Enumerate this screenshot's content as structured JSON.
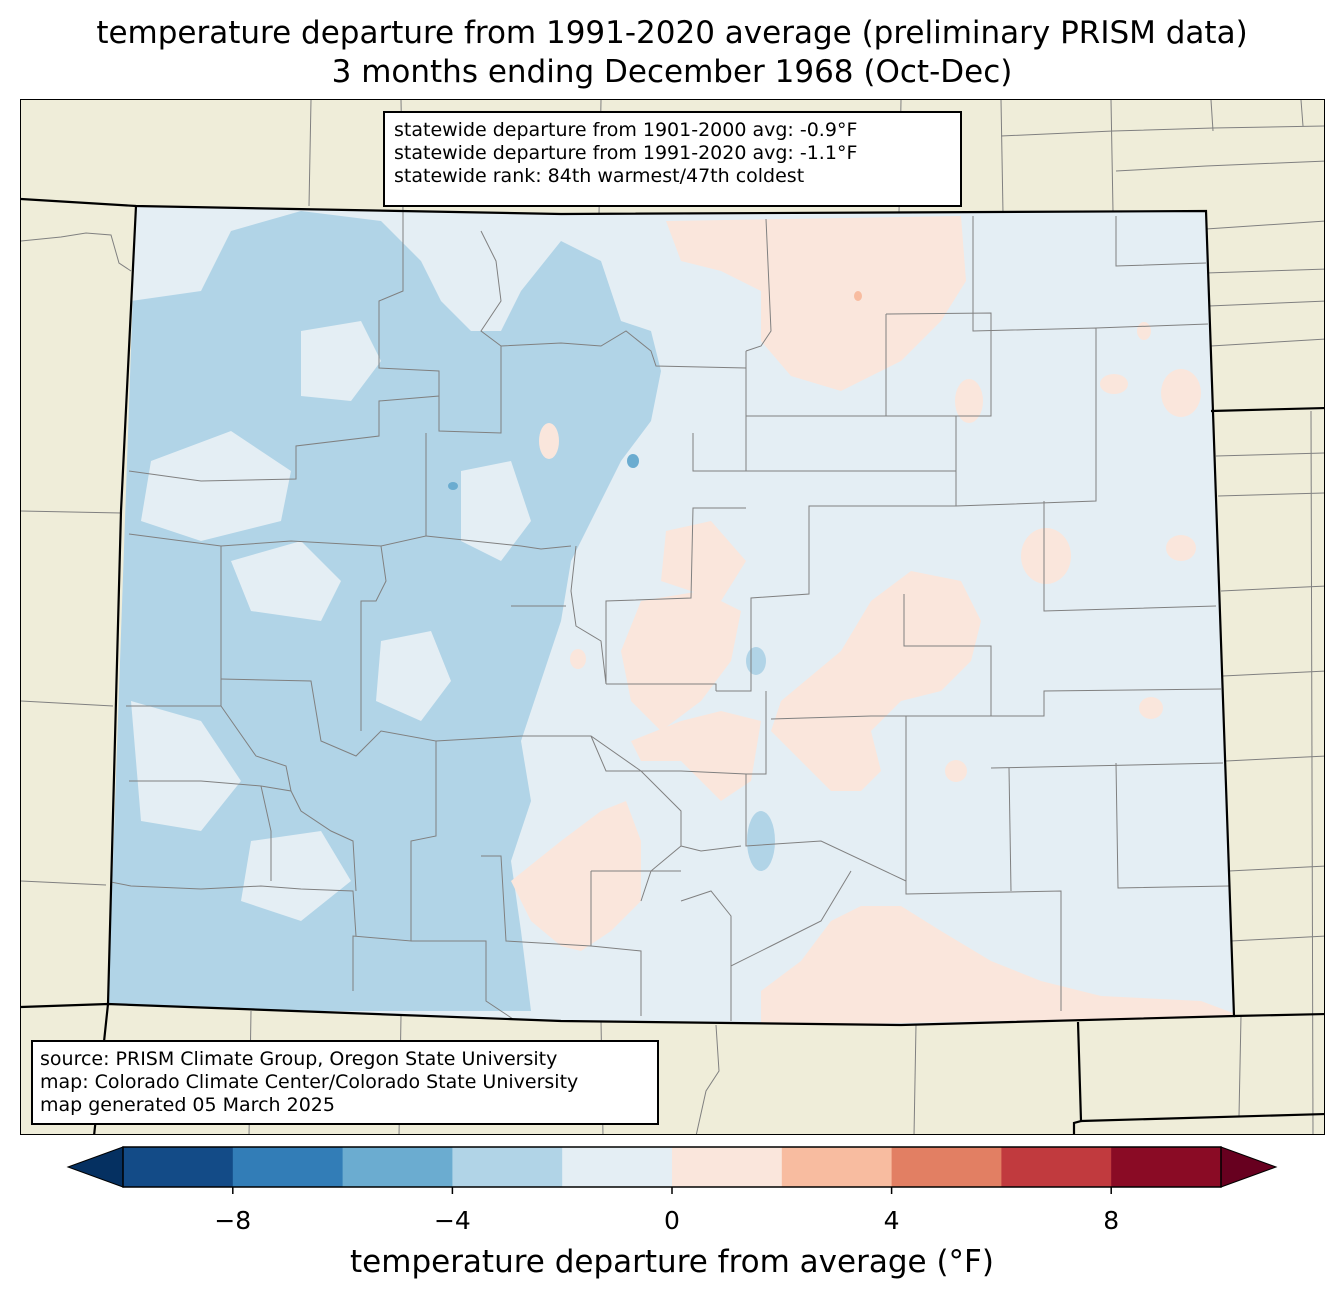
{
  "title": {
    "line1": "temperature departure from 1991-2020 average (preliminary PRISM data)",
    "line2": "3 months ending December 1968 (Oct-Dec)"
  },
  "stats": {
    "line1": "statewide departure from 1901-2000 avg: -0.9°F",
    "line2": "statewide departure from 1991-2020 avg: -1.1°F",
    "line3": "statewide rank: 84th warmest/47th coldest"
  },
  "source": {
    "line1": "source: PRISM Climate Group, Oregon State University",
    "line2": "map: Colorado Climate Center/Colorado State University",
    "line3": "map generated 05 March 2025"
  },
  "colorbar": {
    "label": "temperature departure from average (°F)",
    "ticks": [
      "−8",
      "−4",
      "0",
      "4",
      "8"
    ],
    "tick_values": [
      -8,
      -4,
      0,
      4,
      8
    ],
    "min": -10,
    "max": 10,
    "step": 2,
    "under_color": "#053061",
    "over_color": "#67001f",
    "bin_colors": [
      "#134b87",
      "#327db7",
      "#6bacd0",
      "#b1d4e7",
      "#e4eef4",
      "#fae6dc",
      "#f8bca0",
      "#e27f63",
      "#c13a3e",
      "#8a0b25"
    ]
  },
  "map_colors": {
    "land": "#efedd9",
    "minus0to2": "#e4eef4",
    "minus2to4": "#b1d4e7",
    "minus4to6": "#6bacd0",
    "plus0to2": "#fae6dc",
    "plus2to4": "#f8bca0"
  }
}
